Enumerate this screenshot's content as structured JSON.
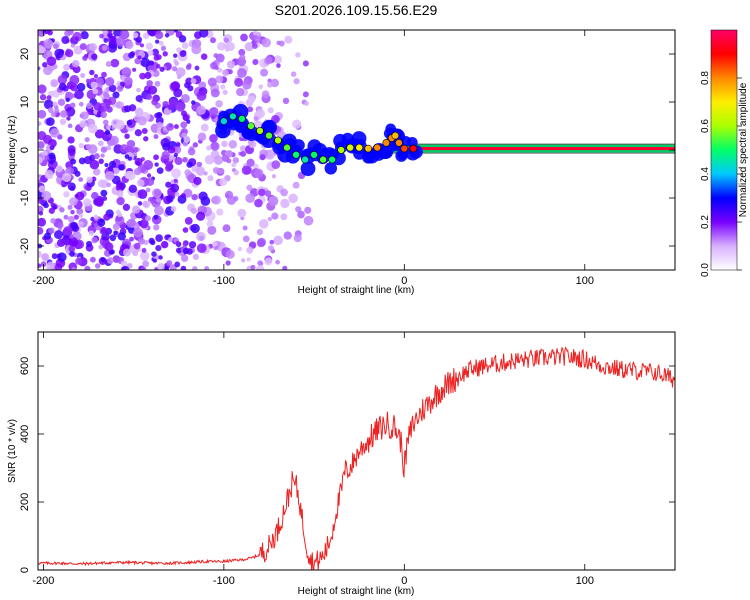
{
  "chart_data": [
    {
      "type": "heatmap",
      "title": "S201.2026.109.15.56.E29",
      "xlabel": "Height of straight line (km)",
      "ylabel": "Frequency (Hz)",
      "xlim": [
        -203,
        150
      ],
      "ylim": [
        -25,
        25
      ],
      "x_ticks": [
        -200,
        -100,
        0,
        100
      ],
      "x_tick_labels": [
        "-200",
        "-100",
        "0",
        "100"
      ],
      "y_ticks": [
        20,
        10,
        0,
        -10,
        -20
      ],
      "y_tick_labels": [
        "20",
        "10",
        "0",
        "-10",
        "-20"
      ],
      "colorbar": {
        "label": "Normalized spectral amplitude",
        "range": [
          0,
          1
        ],
        "ticks": [
          0.0,
          0.2,
          0.4,
          0.6,
          0.8
        ],
        "tick_labels": [
          "0.0",
          "0.2",
          "0.4",
          "0.6",
          "0.8"
        ],
        "colors": [
          "#ffffff",
          "#d8b0ff",
          "#7700ff",
          "#0000ff",
          "#00c8ff",
          "#00ff66",
          "#aaff00",
          "#ffee00",
          "#ff8800",
          "#ff0000",
          "#ff0066"
        ]
      },
      "carrier_line": {
        "frequency": 0.3,
        "x_start": -10,
        "x_end": 150,
        "amplitude": 0.95
      },
      "ridge_points": [
        {
          "x": -100,
          "y": 6,
          "amplitude": 0.42
        },
        {
          "x": -95,
          "y": 7,
          "amplitude": 0.45
        },
        {
          "x": -90,
          "y": 6.5,
          "amplitude": 0.5
        },
        {
          "x": -85,
          "y": 5,
          "amplitude": 0.55
        },
        {
          "x": -80,
          "y": 4,
          "amplitude": 0.6
        },
        {
          "x": -75,
          "y": 3,
          "amplitude": 0.55
        },
        {
          "x": -70,
          "y": 2,
          "amplitude": 0.6
        },
        {
          "x": -65,
          "y": 0.5,
          "amplitude": 0.55
        },
        {
          "x": -60,
          "y": -1,
          "amplitude": 0.5
        },
        {
          "x": -55,
          "y": -2,
          "amplitude": 0.45
        },
        {
          "x": -50,
          "y": -1,
          "amplitude": 0.5
        },
        {
          "x": -45,
          "y": -2,
          "amplitude": 0.55
        },
        {
          "x": -40,
          "y": -2,
          "amplitude": 0.5
        },
        {
          "x": -35,
          "y": 0,
          "amplitude": 0.6
        },
        {
          "x": -30,
          "y": 0.5,
          "amplitude": 0.65
        },
        {
          "x": -25,
          "y": 0.5,
          "amplitude": 0.7
        },
        {
          "x": -20,
          "y": 0.3,
          "amplitude": 0.75
        },
        {
          "x": -15,
          "y": 0.5,
          "amplitude": 0.8
        },
        {
          "x": -10,
          "y": 1.5,
          "amplitude": 0.8
        },
        {
          "x": -7,
          "y": 2.5,
          "amplitude": 0.8
        },
        {
          "x": -5,
          "y": 3,
          "amplitude": 0.75
        },
        {
          "x": -3,
          "y": 1.5,
          "amplitude": 0.8
        },
        {
          "x": 0,
          "y": 0.3,
          "amplitude": 0.85
        },
        {
          "x": 5,
          "y": 0.3,
          "amplitude": 0.9
        }
      ]
    },
    {
      "type": "line",
      "xlabel": "Height of straight line (km)",
      "ylabel": "SNR (10 * v/v)",
      "xlim": [
        -203,
        150
      ],
      "ylim": [
        0,
        700
      ],
      "x_ticks": [
        -200,
        -100,
        0,
        100
      ],
      "x_tick_labels": [
        "-200",
        "-100",
        "0",
        "100"
      ],
      "y_ticks": [
        0,
        200,
        400,
        600
      ],
      "y_tick_labels": [
        "0",
        "200",
        "400",
        "600"
      ],
      "series": [
        {
          "name": "SNR",
          "color": "#ee2222",
          "x": [
            -203,
            -190,
            -180,
            -170,
            -160,
            -150,
            -140,
            -130,
            -120,
            -110,
            -100,
            -95,
            -90,
            -85,
            -80,
            -75,
            -70,
            -67,
            -64,
            -62,
            -60,
            -58,
            -56,
            -54,
            -52,
            -50,
            -48,
            -45,
            -42,
            -40,
            -38,
            -35,
            -33,
            -30,
            -28,
            -25,
            -20,
            -15,
            -10,
            -5,
            -2,
            0,
            2,
            5,
            10,
            15,
            20,
            25,
            30,
            35,
            40,
            50,
            60,
            70,
            80,
            90,
            100,
            110,
            120,
            130,
            140,
            145,
            150
          ],
          "y": [
            20,
            20,
            18,
            20,
            22,
            22,
            20,
            20,
            22,
            25,
            25,
            28,
            30,
            35,
            45,
            70,
            120,
            170,
            220,
            260,
            250,
            200,
            130,
            70,
            30,
            20,
            25,
            40,
            75,
            110,
            170,
            230,
            290,
            300,
            320,
            350,
            380,
            410,
            430,
            420,
            380,
            300,
            380,
            430,
            470,
            500,
            530,
            550,
            570,
            585,
            595,
            605,
            615,
            620,
            625,
            628,
            620,
            600,
            590,
            585,
            580,
            570,
            560
          ]
        }
      ]
    }
  ]
}
